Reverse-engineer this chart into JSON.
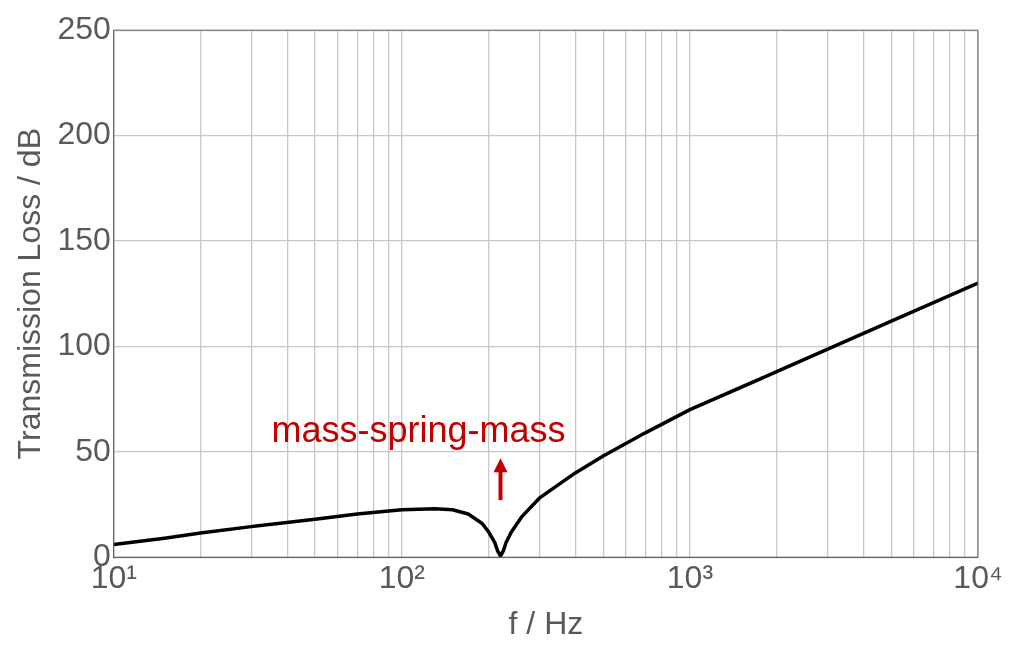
{
  "chart_data": {
    "type": "line",
    "xlabel": "f / Hz",
    "ylabel": "Transmission Loss / dB",
    "log": "x",
    "grid": true,
    "marker": "none",
    "line_style": "solid",
    "xlim": [
      10,
      10000
    ],
    "ylim": [
      0,
      250
    ],
    "xticks": [
      {
        "value": 10,
        "label": "10¹"
      },
      {
        "value": 20,
        "label": null
      },
      {
        "value": 30,
        "label": null
      },
      {
        "value": 40,
        "label": null
      },
      {
        "value": 50,
        "label": null
      },
      {
        "value": 60,
        "label": null
      },
      {
        "value": 70,
        "label": null
      },
      {
        "value": 80,
        "label": null
      },
      {
        "value": 90,
        "label": null
      },
      {
        "value": 100,
        "label": "10²"
      },
      {
        "value": 200,
        "label": null
      },
      {
        "value": 300,
        "label": null
      },
      {
        "value": 400,
        "label": null
      },
      {
        "value": 500,
        "label": null
      },
      {
        "value": 600,
        "label": null
      },
      {
        "value": 700,
        "label": null
      },
      {
        "value": 800,
        "label": null
      },
      {
        "value": 900,
        "label": null
      },
      {
        "value": 1000,
        "label": "10³"
      },
      {
        "value": 2000,
        "label": null
      },
      {
        "value": 3000,
        "label": null
      },
      {
        "value": 4000,
        "label": null
      },
      {
        "value": 5000,
        "label": null
      },
      {
        "value": 6000,
        "label": null
      },
      {
        "value": 7000,
        "label": null
      },
      {
        "value": 8000,
        "label": null
      },
      {
        "value": 9000,
        "label": null
      },
      {
        "value": 10000,
        "label": "10⁴"
      }
    ],
    "yticks": [
      0,
      50,
      100,
      150,
      200,
      250
    ],
    "x": [
      10,
      15,
      20,
      30,
      50,
      70,
      100,
      130,
      150,
      170,
      190,
      200,
      210,
      215,
      220,
      225,
      230,
      240,
      260,
      300,
      400,
      500,
      700,
      1000,
      2000,
      5000,
      10000
    ],
    "series": [
      {
        "color": "#000000",
        "values": [
          6,
          9,
          11.5,
          14.5,
          18,
          20.5,
          22.5,
          23,
          22.5,
          20.5,
          16,
          12,
          7,
          3,
          0.5,
          3,
          7,
          12,
          19,
          28,
          40,
          48,
          59,
          70,
          88,
          112,
          130
        ]
      }
    ],
    "annotations": [
      {
        "text": "mass-spring-mass",
        "x": 220,
        "y": 0.5
      }
    ]
  }
}
